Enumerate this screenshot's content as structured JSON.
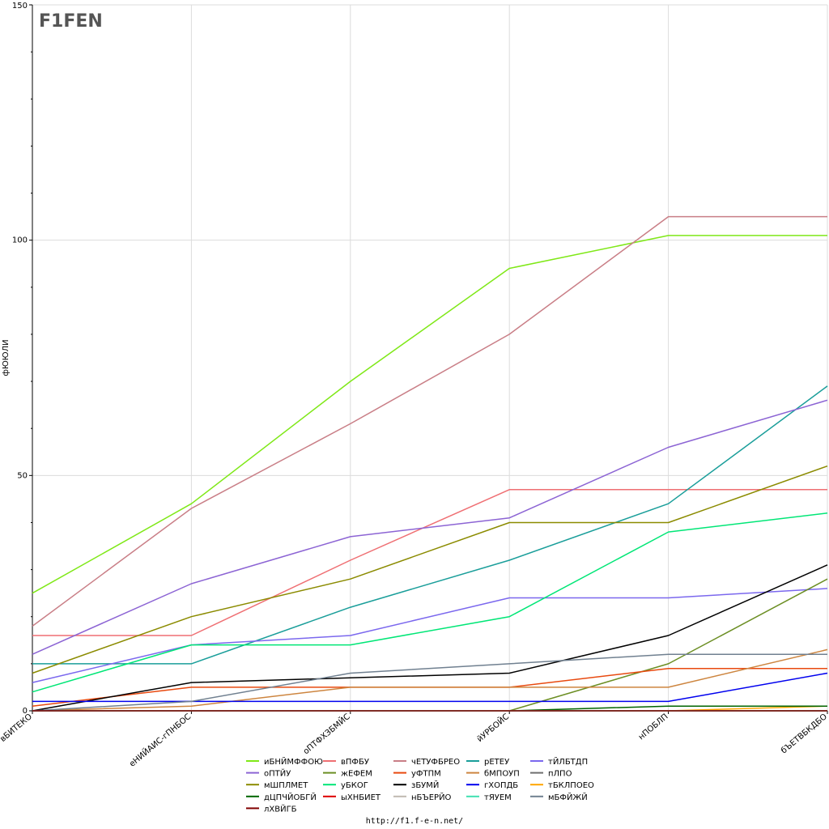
{
  "chart_data": {
    "type": "line",
    "ylabel": "фЮЮЛИ",
    "ylim": [
      0,
      150
    ],
    "yticks": [
      0,
      50,
      100,
      150
    ],
    "grid": true,
    "legend_position": "bottom",
    "categories": [
      "вБИТЕКО",
      "еНИЙАИС-гПНБОС",
      "оПТФХЗБМЙС",
      "йУРБОЙС",
      "нПОБЛП",
      "бЪЕТВБКДБО"
    ],
    "series": [
      {
        "name": "иБНЙМФФОЮ",
        "color": "#7fe817",
        "values": [
          25,
          44,
          70,
          94,
          101,
          101
        ]
      },
      {
        "name": "вПФБУ",
        "color": "#ef6f73",
        "values": [
          16,
          16,
          32,
          47,
          47,
          47
        ]
      },
      {
        "name": "чЕТУФБРЕО",
        "color": "#c97e86",
        "values": [
          18,
          43,
          61,
          80,
          105,
          105
        ]
      },
      {
        "name": "рЕТЕУ",
        "color": "#1a9e9a",
        "values": [
          10,
          10,
          22,
          32,
          44,
          69
        ]
      },
      {
        "name": "тЙЛБТДП",
        "color": "#7b68ee",
        "values": [
          6,
          14,
          16,
          24,
          24,
          26
        ]
      },
      {
        "name": "оПТЙУ",
        "color": "#8c64d4",
        "values": [
          12,
          27,
          37,
          41,
          56,
          66
        ]
      },
      {
        "name": "жЕФЕМ",
        "color": "#6b8e23",
        "values": [
          null,
          null,
          null,
          0,
          10,
          28
        ]
      },
      {
        "name": "уФТПМ",
        "color": "#e8490f",
        "values": [
          1,
          5,
          5,
          5,
          9,
          9
        ]
      },
      {
        "name": "бМПОУП",
        "color": "#cd853f",
        "values": [
          0,
          1,
          5,
          5,
          5,
          13
        ]
      },
      {
        "name": "пЛПО",
        "color": "#6e6e6e",
        "values": [
          0,
          0,
          0,
          0,
          0,
          0
        ]
      },
      {
        "name": "мШПЛМЕТ",
        "color": "#8b8b00",
        "values": [
          8,
          20,
          28,
          40,
          40,
          52
        ]
      },
      {
        "name": "уБКОГ",
        "color": "#00e676",
        "values": [
          4,
          14,
          14,
          20,
          38,
          42
        ]
      },
      {
        "name": "зБУМЙ",
        "color": "#000000",
        "values": [
          0,
          6,
          7,
          8,
          16,
          31
        ]
      },
      {
        "name": "гХОПДБ",
        "color": "#0000ee",
        "values": [
          2,
          2,
          2,
          2,
          2,
          8
        ]
      },
      {
        "name": "тБКЛПОЕО",
        "color": "#ffa500",
        "values": [
          null,
          null,
          null,
          null,
          0,
          1
        ]
      },
      {
        "name": "дЦПЧЙОБГЙ",
        "color": "#006400",
        "values": [
          null,
          null,
          null,
          0,
          1,
          1
        ]
      },
      {
        "name": "ыХНБИЕТ",
        "color": "#dd0000",
        "values": [
          0,
          0,
          0,
          0,
          0,
          0
        ]
      },
      {
        "name": "нБЪЕРЙО",
        "color": "#c0b9b0",
        "values": [
          0,
          0,
          0,
          0,
          0,
          0
        ]
      },
      {
        "name": "тЯУЕМ",
        "color": "#40e0b0",
        "values": [
          0,
          0,
          0,
          0,
          0,
          0
        ]
      },
      {
        "name": "мБФЙЖЙ",
        "color": "#708090",
        "values": [
          0,
          2,
          8,
          10,
          12,
          12
        ]
      },
      {
        "name": "лХВЙГБ",
        "color": "#800000",
        "values": [
          0,
          0,
          0,
          0,
          0,
          0
        ]
      }
    ]
  },
  "footer": {
    "url": "http://f1.f-e-n.net/"
  },
  "logo": {
    "text": "F1FEN"
  }
}
